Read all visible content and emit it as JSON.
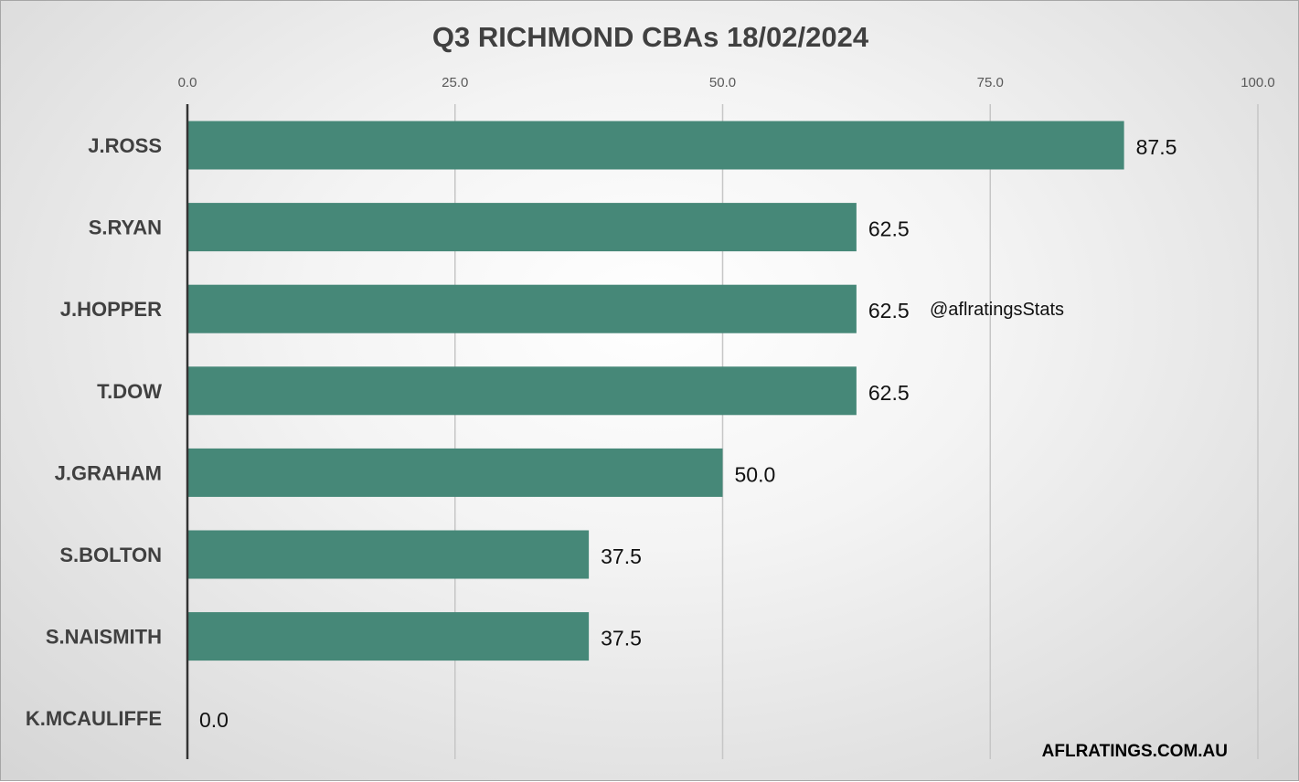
{
  "chart_data": {
    "type": "bar",
    "orientation": "horizontal",
    "title": "Q3 RICHMOND CBAs 18/02/2024",
    "categories": [
      "J.ROSS",
      "S.RYAN",
      "J.HOPPER",
      "T.DOW",
      "J.GRAHAM",
      "S.BOLTON",
      "S.NAISMITH",
      "K.MCAULIFFE"
    ],
    "values": [
      87.5,
      62.5,
      62.5,
      62.5,
      50.0,
      37.5,
      37.5,
      0.0
    ],
    "xlim": [
      0,
      100
    ],
    "ticks": [
      0,
      25,
      50,
      75,
      100
    ],
    "tick_labels": [
      "0.0",
      "25.0",
      "50.0",
      "75.0",
      "100.0"
    ],
    "value_labels": [
      "87.5",
      "62.5",
      "62.5",
      "62.5",
      "50.0",
      "37.5",
      "37.5",
      "0.0"
    ],
    "axis_position": "top",
    "grid": true,
    "bar_color": "#468878",
    "watermark": "@aflratingsStats",
    "footer": "AFLRATINGS.COM.AU"
  }
}
